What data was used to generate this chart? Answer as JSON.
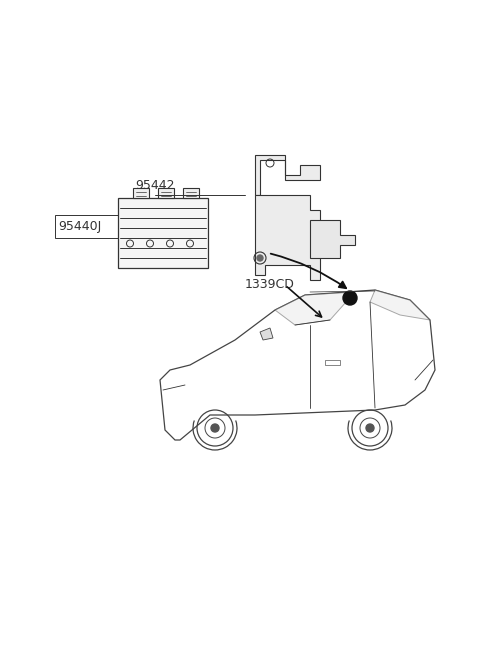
{
  "bg_color": "#ffffff",
  "line_color": "#333333",
  "label_95442": "95442",
  "label_95440J": "95440J",
  "label_1339CD": "1339CD",
  "font_size_labels": 9,
  "figure_width": 4.8,
  "figure_height": 6.57,
  "dpi": 100
}
